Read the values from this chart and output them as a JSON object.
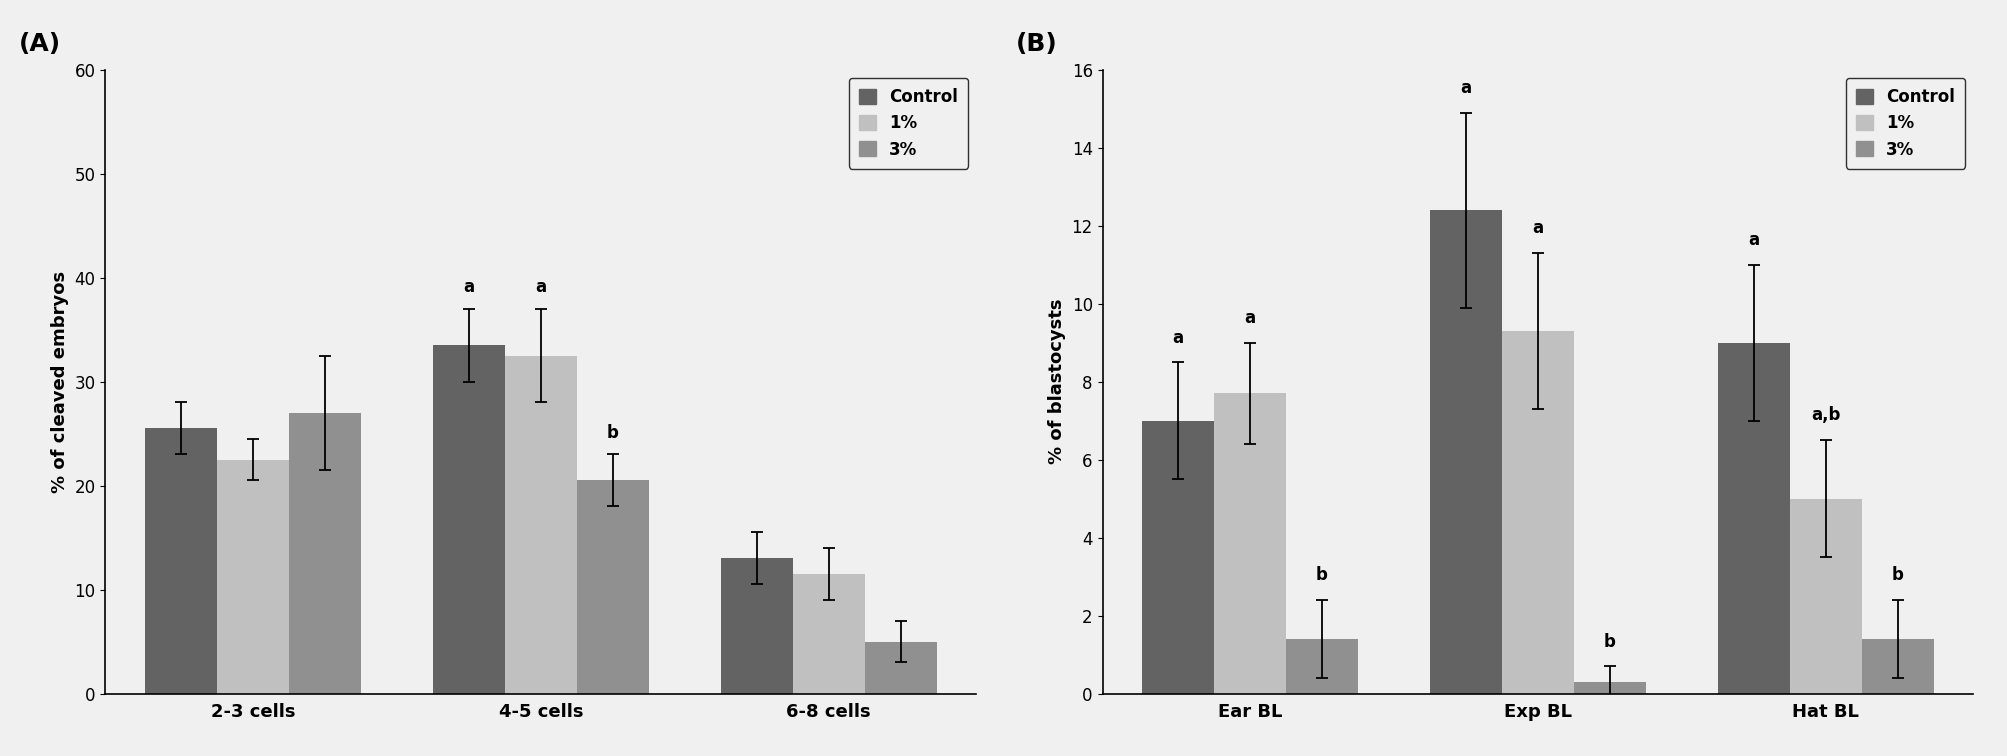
{
  "A": {
    "title": "(A)",
    "ylabel": "% of cleaved embryos",
    "categories": [
      "2-3 cells",
      "4-5 cells",
      "6-8 cells"
    ],
    "groups": [
      "Control",
      "1%",
      "3%"
    ],
    "values": [
      [
        25.5,
        22.5,
        27.0
      ],
      [
        33.5,
        32.5,
        20.5
      ],
      [
        13.0,
        11.5,
        5.0
      ]
    ],
    "errors": [
      [
        2.5,
        2.0,
        5.5
      ],
      [
        3.5,
        4.5,
        2.5
      ],
      [
        2.5,
        2.5,
        2.0
      ]
    ],
    "ylim": [
      0,
      60
    ],
    "yticks": [
      0,
      10,
      20,
      30,
      40,
      50,
      60
    ],
    "annotations": {
      "4-5 cells": [
        [
          "a",
          0
        ],
        [
          "a",
          1
        ],
        [
          "b",
          2
        ]
      ]
    }
  },
  "B": {
    "title": "(B)",
    "ylabel": "% of blastocysts",
    "categories": [
      "Ear BL",
      "Exp BL",
      "Hat BL"
    ],
    "groups": [
      "Control",
      "1%",
      "3%"
    ],
    "values": [
      [
        7.0,
        7.7,
        1.4
      ],
      [
        12.4,
        9.3,
        0.3
      ],
      [
        9.0,
        5.0,
        1.4
      ]
    ],
    "errors": [
      [
        1.5,
        1.3,
        1.0
      ],
      [
        2.5,
        2.0,
        0.4
      ],
      [
        2.0,
        1.5,
        1.0
      ]
    ],
    "ylim": [
      0,
      16
    ],
    "yticks": [
      0,
      2,
      4,
      6,
      8,
      10,
      12,
      14,
      16
    ],
    "annotations": {
      "Ear BL": [
        [
          "a",
          0
        ],
        [
          "a",
          1
        ],
        [
          "b",
          2
        ]
      ],
      "Exp BL": [
        [
          "a",
          0
        ],
        [
          "a",
          1
        ],
        [
          "b",
          2
        ]
      ],
      "Hat BL": [
        [
          "a",
          0
        ],
        [
          "a,b",
          1
        ],
        [
          "b",
          2
        ]
      ]
    }
  },
  "legend_labels": [
    "Control",
    "1%",
    "3%"
  ],
  "bar_colors": [
    "#636363",
    "#c0c0c0",
    "#909090"
  ],
  "bar_width": 0.25,
  "fig_facecolor": "#f0f0f0"
}
